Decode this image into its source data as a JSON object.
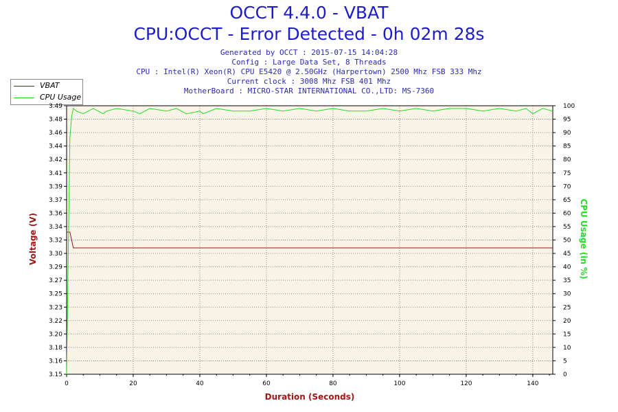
{
  "header": {
    "title": "OCCT 4.4.0 - VBAT",
    "subtitle": "CPU:OCCT - Error Detected - 0h 02m 28s",
    "info_lines": [
      "Generated by OCCT : 2015-07-15 14:04:28",
      "Config : Large Data Set, 8 Threads",
      "CPU : Intel(R) Xeon(R) CPU E5420 @ 2.50GHz (Harpertown) 2500 Mhz FSB 333 Mhz",
      "Current clock : 3008 Mhz FSB 401 Mhz",
      "MotherBoard : MICRO-STAR INTERNATIONAL CO.,LTD: MS-7360"
    ]
  },
  "colors": {
    "vbat": "#8b1a1a",
    "cpu_usage": "#22dd22",
    "plot_bg": "#faf4e8",
    "grid": "#8a8a8a",
    "title": "#1c1ccc"
  },
  "chart_data": {
    "type": "line",
    "title": "OCCT 4.4.0 - VBAT",
    "xlabel": "Duration (Seconds)",
    "ylabel": "Voltage (V)",
    "y2label": "CPU Usage (in %)",
    "xlim": [
      0,
      146
    ],
    "ylim": [
      3.15,
      3.49
    ],
    "y2lim": [
      0,
      100
    ],
    "x_ticks": [
      "0",
      "20",
      "40",
      "60",
      "80",
      "100",
      "120",
      "140"
    ],
    "y_ticks": [
      "3.15",
      "3.16",
      "3.18",
      "3.20",
      "3.22",
      "3.23",
      "3.25",
      "3.27",
      "3.29",
      "3.30",
      "3.32",
      "3.34",
      "3.36",
      "3.37",
      "3.39",
      "3.41",
      "3.42",
      "3.44",
      "3.46",
      "3.48",
      "3.49"
    ],
    "y2_ticks": [
      "0",
      "5",
      "10",
      "15",
      "20",
      "25",
      "30",
      "35",
      "40",
      "45",
      "50",
      "55",
      "60",
      "65",
      "70",
      "75",
      "80",
      "85",
      "90",
      "95",
      "100"
    ],
    "grid": true,
    "legend": "top-left",
    "series": [
      {
        "name": "VBAT",
        "axis": "left",
        "x": [
          0,
          0.5,
          1,
          1.5,
          2,
          146
        ],
        "y": [
          3.33,
          3.33,
          3.33,
          3.32,
          3.31,
          3.31
        ]
      },
      {
        "name": "CPU Usage",
        "axis": "right",
        "x": [
          0,
          0.5,
          1,
          1.5,
          2,
          3,
          5,
          8,
          11,
          12,
          15,
          20,
          22,
          25,
          30,
          33,
          36,
          40,
          41,
          45,
          50,
          55,
          60,
          65,
          70,
          75,
          80,
          85,
          90,
          95,
          100,
          105,
          110,
          115,
          120,
          125,
          130,
          135,
          138,
          140,
          143,
          146
        ],
        "y": [
          0,
          45,
          88,
          96,
          99,
          98,
          97,
          99,
          97,
          98,
          99,
          98,
          97,
          99,
          98,
          99,
          97,
          98,
          97,
          99,
          98,
          98,
          99,
          98,
          99,
          98,
          99,
          98,
          98,
          99,
          98,
          99,
          98,
          99,
          99,
          98,
          99,
          98,
          99,
          97,
          99,
          98
        ]
      }
    ]
  }
}
